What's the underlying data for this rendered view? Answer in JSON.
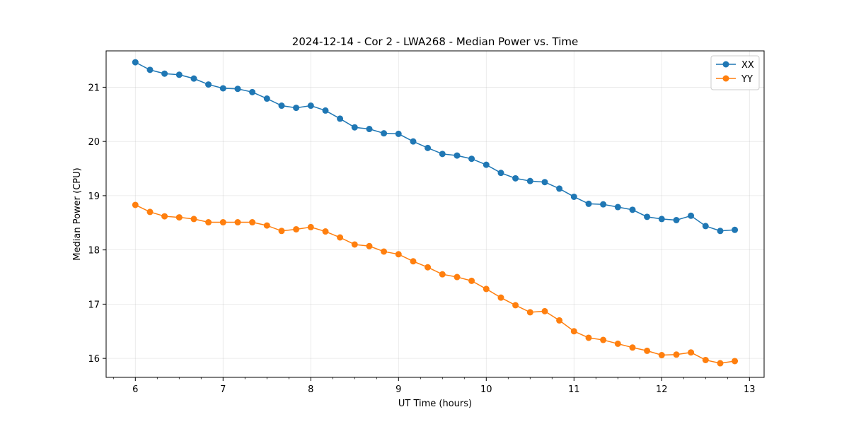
{
  "chart_data": {
    "type": "line",
    "title": "2024-12-14 - Cor 2 - LWA268 - Median Power vs. Time",
    "xlabel": "UT Time (hours)",
    "ylabel": "Median Power (CPU)",
    "xlim": [
      5.667,
      13.167
    ],
    "ylim": [
      15.65,
      21.67
    ],
    "xticks": [
      6,
      7,
      8,
      9,
      10,
      11,
      12,
      13
    ],
    "yticks": [
      16,
      17,
      18,
      19,
      20,
      21
    ],
    "xminor_step": 0.25,
    "grid": true,
    "legend_position": "top-right",
    "x": [
      6.0,
      6.167,
      6.333,
      6.5,
      6.667,
      6.833,
      7.0,
      7.167,
      7.333,
      7.5,
      7.667,
      7.833,
      8.0,
      8.167,
      8.333,
      8.5,
      8.667,
      8.833,
      9.0,
      9.167,
      9.333,
      9.5,
      9.667,
      9.833,
      10.0,
      10.167,
      10.333,
      10.5,
      10.667,
      10.833,
      11.0,
      11.167,
      11.333,
      11.5,
      11.667,
      11.833,
      12.0,
      12.167,
      12.333,
      12.5,
      12.667,
      12.833
    ],
    "series": [
      {
        "name": "XX",
        "color": "#1f77b4",
        "values": [
          21.46,
          21.32,
          21.25,
          21.23,
          21.16,
          21.05,
          20.98,
          20.97,
          20.91,
          20.79,
          20.66,
          20.62,
          20.66,
          20.57,
          20.42,
          20.26,
          20.23,
          20.15,
          20.14,
          20.0,
          19.88,
          19.77,
          19.74,
          19.68,
          19.57,
          19.42,
          19.32,
          19.27,
          19.25,
          19.13,
          18.98,
          18.85,
          18.84,
          18.79,
          18.74,
          18.61,
          18.57,
          18.55,
          18.63,
          18.44,
          18.35,
          18.37
        ]
      },
      {
        "name": "YY",
        "color": "#ff7f0e",
        "values": [
          18.83,
          18.7,
          18.62,
          18.6,
          18.57,
          18.51,
          18.51,
          18.51,
          18.51,
          18.45,
          18.35,
          18.38,
          18.42,
          18.34,
          18.23,
          18.1,
          18.07,
          17.97,
          17.92,
          17.79,
          17.68,
          17.55,
          17.5,
          17.43,
          17.28,
          17.12,
          16.98,
          16.85,
          16.87,
          16.7,
          16.5,
          16.38,
          16.34,
          16.27,
          16.2,
          16.14,
          16.06,
          16.07,
          16.11,
          15.97,
          15.91,
          15.95
        ]
      }
    ]
  }
}
